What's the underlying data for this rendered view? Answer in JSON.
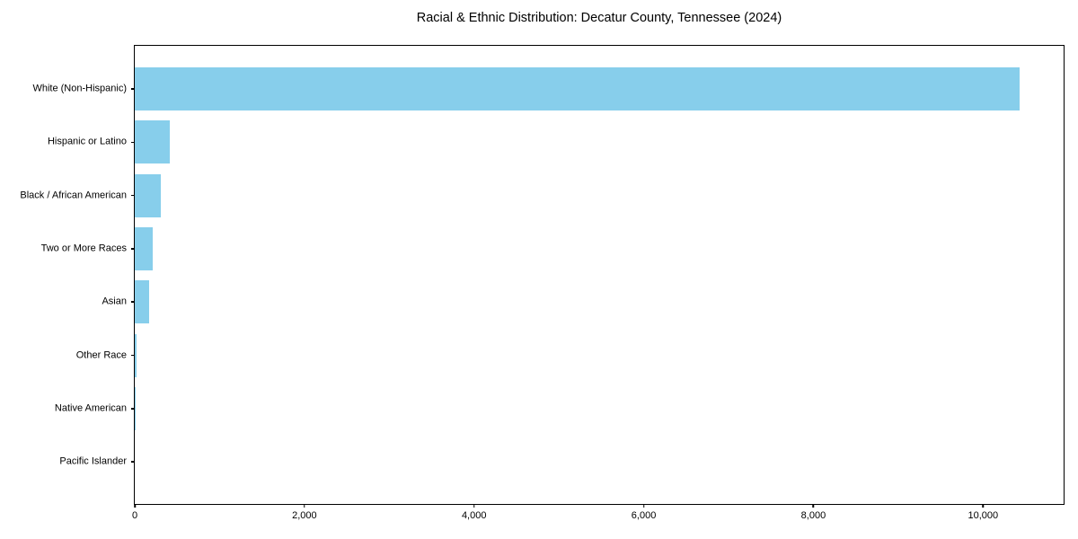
{
  "chart_data": {
    "type": "bar",
    "orientation": "horizontal",
    "title": "Racial & Ethnic Distribution: Decatur County, Tennessee (2024)",
    "categories": [
      "White (Non-Hispanic)",
      "Hispanic or Latino",
      "Black / African American",
      "Two or More Races",
      "Asian",
      "Other Race",
      "Native American",
      "Pacific Islander"
    ],
    "values": [
      10430,
      415,
      305,
      210,
      170,
      25,
      10,
      0
    ],
    "xlabel": "",
    "ylabel": "",
    "xlim": [
      0,
      10950
    ],
    "xticks": {
      "values": [
        0,
        2000,
        4000,
        6000,
        8000,
        10000
      ],
      "labels": [
        "0",
        "2,000",
        "4,000",
        "6,000",
        "8,000",
        "10,000"
      ]
    },
    "grid": false,
    "legend": null,
    "colors": {
      "bar": "#87CEEB",
      "spine": "#000000",
      "text": "#000000",
      "background": "#ffffff"
    }
  }
}
